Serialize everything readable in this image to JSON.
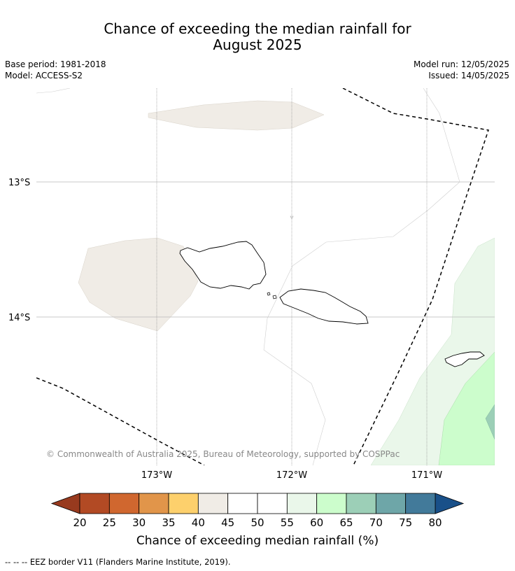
{
  "title_line1": "Chance of exceeding the median rainfall for",
  "title_line2": "August 2025",
  "base_period": "Base period: 1981-2018",
  "model": "Model: ACCESS-S2",
  "model_run": "Model run: 12/05/2025",
  "issued": "Issued: 14/05/2025",
  "map": {
    "lat_labels": [
      "13°S",
      "14°S"
    ],
    "lon_labels": [
      "173°W",
      "172°W",
      "171°W"
    ],
    "copyright": "© Commonwealth of Australia 2025, Bureau of Meteorology, supported by COSPPac"
  },
  "colorbar": {
    "ticks": [
      "20",
      "25",
      "30",
      "35",
      "40",
      "45",
      "50",
      "55",
      "60",
      "65",
      "70",
      "75",
      "80"
    ],
    "colors": [
      "#b24a24",
      "#d0672f",
      "#e1954a",
      "#fdd06c",
      "#f0ece6",
      "#ffffff",
      "#ffffff",
      "#eaf7ea",
      "#ccfdcc",
      "#9ccfb7",
      "#6ea6a8",
      "#427a9a"
    ],
    "under_color": "#983a1e",
    "over_color": "#195089",
    "label": "Chance of exceeding median rainfall (%)"
  },
  "footer": "--  --  -- EEZ border V11 (Flanders Marine Institute, 2019)."
}
